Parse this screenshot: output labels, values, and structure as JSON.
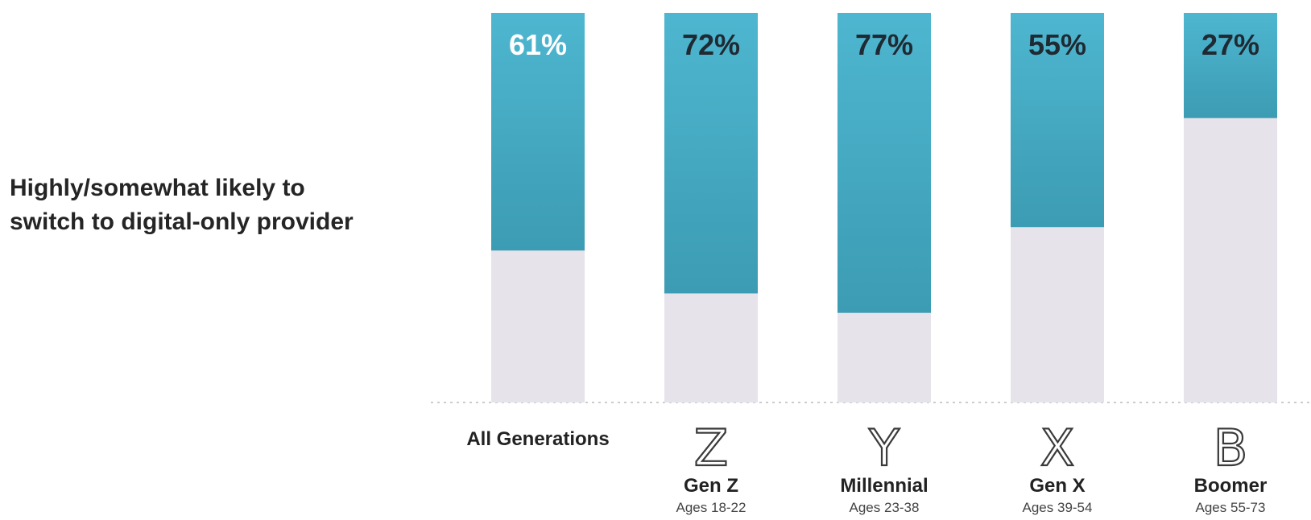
{
  "row_label": "Highly/somewhat likely to\nswitch to digital-only provider",
  "colors": {
    "bar_fill_top": "#4eb6d0",
    "bar_fill_bottom": "#3c9cb3",
    "bar_empty": "#e6e3ea",
    "label_light": "#ffffff",
    "label_dark": "#1f2a33",
    "baseline": "#cccccc"
  },
  "chart_data": {
    "type": "bar",
    "stacked_to_100": true,
    "ylim": [
      0,
      100
    ],
    "categories": [
      "All Generations",
      "Gen Z",
      "Millennial",
      "Gen X",
      "Boomer"
    ],
    "category_letters": [
      "",
      "Z",
      "Y",
      "X",
      "B"
    ],
    "category_sublabels": [
      "",
      "Ages 18-22",
      "Ages 23-38",
      "Ages 39-54",
      "Ages 55-73"
    ],
    "values": [
      61,
      72,
      77,
      55,
      27
    ],
    "value_labels": [
      "61%",
      "72%",
      "77%",
      "55%",
      "27%"
    ],
    "label_color": [
      "light",
      "dark",
      "dark",
      "dark",
      "dark"
    ]
  }
}
